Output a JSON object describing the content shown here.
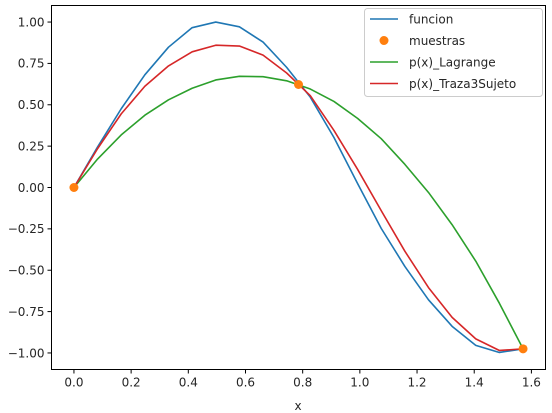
{
  "chart_data": {
    "type": "line",
    "title": "",
    "xlabel": "x",
    "ylabel": "",
    "xlim": [
      -0.0785,
      1.6493
    ],
    "ylim": [
      -1.1,
      1.1
    ],
    "xticks": [
      0.0,
      0.2,
      0.4,
      0.6,
      0.8,
      1.0,
      1.2,
      1.4,
      1.6
    ],
    "xtick_labels": [
      "0.0",
      "0.2",
      "0.4",
      "0.6",
      "0.8",
      "1.0",
      "1.2",
      "1.4",
      "1.6"
    ],
    "yticks": [
      -1.0,
      -0.75,
      -0.5,
      -0.25,
      0.0,
      0.25,
      0.5,
      0.75,
      1.0
    ],
    "ytick_labels": [
      "−1.00",
      "−0.75",
      "−0.50",
      "−0.25",
      "0.00",
      "0.25",
      "0.50",
      "0.75",
      "1.00"
    ],
    "grid": false,
    "legend_position": "top-right",
    "series": [
      {
        "name": "funcion",
        "kind": "line",
        "color": "#1f77b4",
        "x": [
          0.0,
          0.0827,
          0.1653,
          0.248,
          0.3307,
          0.4134,
          0.496,
          0.5787,
          0.6614,
          0.744,
          0.8267,
          0.9094,
          0.992,
          1.0747,
          1.1574,
          1.2401,
          1.3227,
          1.4054,
          1.4881,
          1.5708
        ],
        "y": [
          0.0,
          0.245,
          0.476,
          0.681,
          0.848,
          0.966,
          1.0,
          0.971,
          0.879,
          0.726,
          0.546,
          0.302,
          0.024,
          -0.247,
          -0.477,
          -0.679,
          -0.839,
          -0.954,
          -0.997,
          -0.975
        ]
      },
      {
        "name": "muestras",
        "kind": "scatter",
        "color": "#ff7f0e",
        "x": [
          0.0,
          0.7854,
          1.5708
        ],
        "y": [
          0.0,
          0.6225,
          -0.975
        ]
      },
      {
        "name": "p(x)_Lagrange",
        "kind": "line",
        "color": "#2ca02c",
        "x": [
          0.0,
          0.0827,
          0.1653,
          0.248,
          0.3307,
          0.4134,
          0.496,
          0.5787,
          0.6614,
          0.744,
          0.8267,
          0.9094,
          0.992,
          1.0747,
          1.1574,
          1.2401,
          1.3227,
          1.4054,
          1.4881,
          1.5708
        ],
        "y": [
          0.0,
          0.172,
          0.318,
          0.437,
          0.53,
          0.6,
          0.65,
          0.672,
          0.67,
          0.645,
          0.595,
          0.52,
          0.418,
          0.295,
          0.14,
          -0.03,
          -0.225,
          -0.445,
          -0.7,
          -0.975
        ]
      },
      {
        "name": "p(x)_Traza3Sujeto",
        "kind": "line",
        "color": "#d62728",
        "x": [
          0.0,
          0.0827,
          0.1653,
          0.248,
          0.3307,
          0.4134,
          0.496,
          0.5787,
          0.6614,
          0.744,
          0.8267,
          0.9094,
          0.992,
          1.0747,
          1.1574,
          1.2401,
          1.3227,
          1.4054,
          1.4881,
          1.5708
        ],
        "y": [
          0.0,
          0.235,
          0.445,
          0.612,
          0.735,
          0.82,
          0.86,
          0.855,
          0.8,
          0.692,
          0.555,
          0.345,
          0.11,
          -0.14,
          -0.385,
          -0.605,
          -0.785,
          -0.915,
          -0.985,
          -0.975
        ]
      }
    ]
  }
}
